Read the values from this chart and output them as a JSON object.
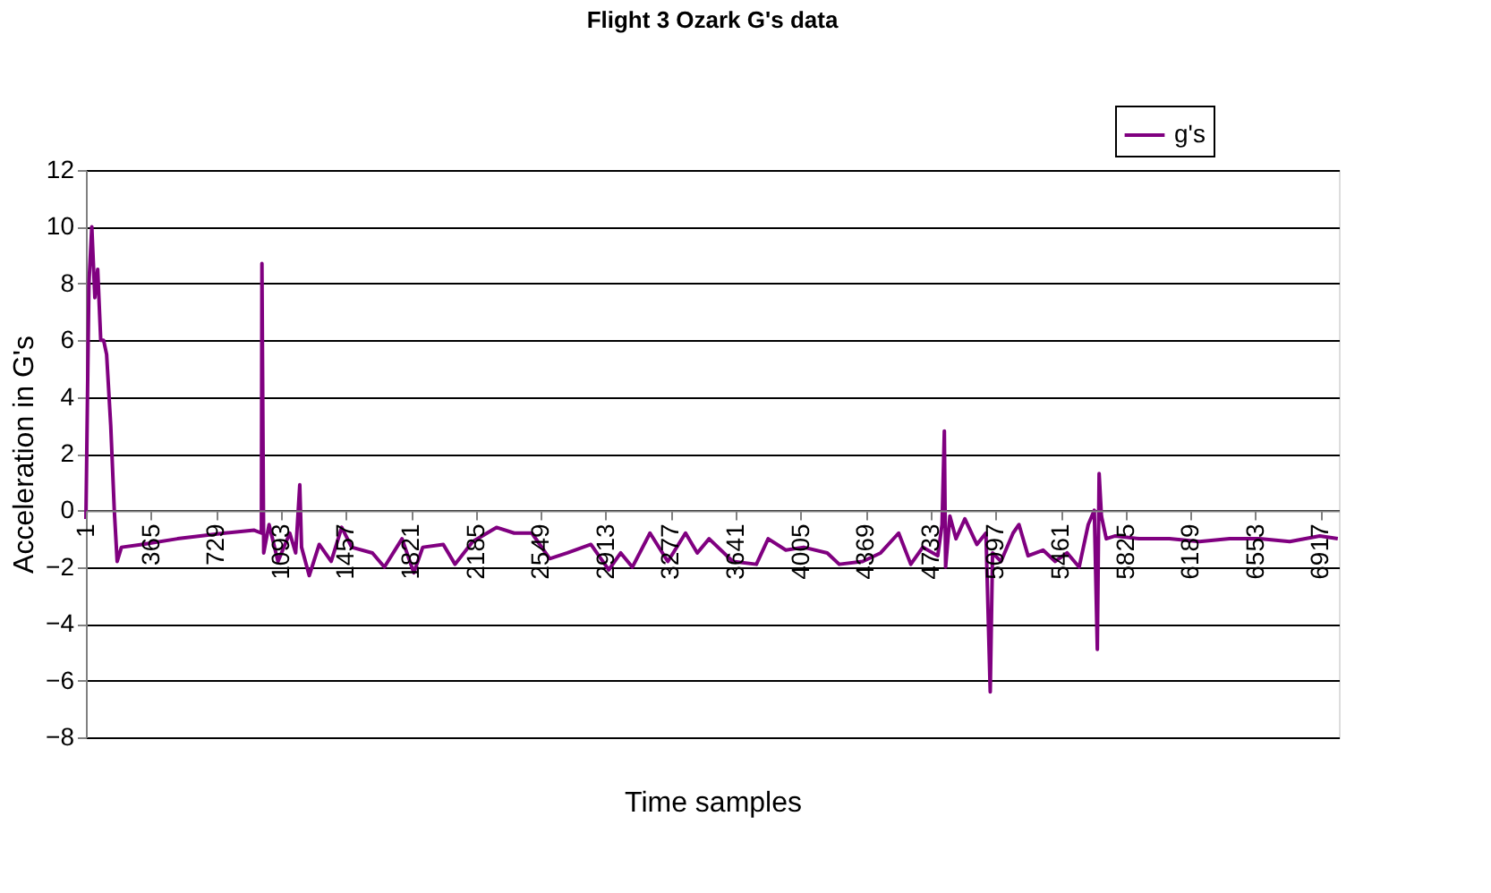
{
  "chart_data": {
    "type": "line",
    "title": "Flight 3 Ozark G's data",
    "xlabel": "Time samples",
    "ylabel": "Acceleration in G's",
    "series": [
      {
        "name": "g's",
        "color": "#800080",
        "x": [
          1,
          18,
          34,
          51,
          67,
          84,
          100,
          117,
          140,
          160,
          176,
          200,
          315,
          514,
          779,
          944,
          984,
          987,
          997,
          1027,
          1077,
          1143,
          1176,
          1199,
          1209,
          1252,
          1308,
          1375,
          1434,
          1490,
          1606,
          1673,
          1772,
          1838,
          1888,
          2003,
          2069,
          2168,
          2301,
          2400,
          2499,
          2599,
          2698,
          2830,
          2930,
          2997,
          3062,
          3161,
          3261,
          3360,
          3426,
          3492,
          3625,
          3757,
          3823,
          3922,
          4022,
          4154,
          4221,
          4352,
          4453,
          4554,
          4622,
          4689,
          4773,
          4797,
          4810,
          4817,
          4841,
          4875,
          4925,
          4992,
          5043,
          5067,
          5080,
          5127,
          5195,
          5228,
          5279,
          5363,
          5431,
          5498,
          5565,
          5616,
          5650,
          5667,
          5677,
          5690,
          5717,
          5768,
          5902,
          6071,
          6239,
          6408,
          6576,
          6745,
          6913,
          7014
        ],
        "values": [
          -0.3,
          8,
          10,
          7.5,
          8.5,
          6,
          6,
          5.5,
          3,
          0,
          -1.8,
          -1.3,
          -1.2,
          -1.0,
          -0.8,
          -0.7,
          -0.8,
          8.7,
          -1.5,
          -0.5,
          -1.8,
          -0.8,
          -1.5,
          0.9,
          -1.3,
          -2.3,
          -1.2,
          -1.8,
          -0.6,
          -1.3,
          -1.5,
          -2,
          -1,
          -2.2,
          -1.3,
          -1.2,
          -1.9,
          -1.1,
          -0.6,
          -0.8,
          -0.8,
          -1.7,
          -1.5,
          -1.2,
          -2.1,
          -1.5,
          -2.0,
          -0.8,
          -1.8,
          -0.8,
          -1.5,
          -1.0,
          -1.8,
          -1.9,
          -1.0,
          -1.4,
          -1.3,
          -1.5,
          -1.9,
          -1.8,
          -1.5,
          -0.8,
          -1.9,
          -1.3,
          -1.6,
          -0.5,
          2.8,
          -2,
          -0.2,
          -1.0,
          -0.3,
          -1.2,
          -0.8,
          -6.4,
          -1.5,
          -1.8,
          -0.8,
          -0.5,
          -1.6,
          -1.4,
          -1.8,
          -1.5,
          -2.0,
          -0.5,
          0,
          -4.9,
          1.3,
          -0.2,
          -1.0,
          -0.9,
          -1.0,
          -1.0,
          -1.1,
          -1.0,
          -1.0,
          -1.1,
          -0.9,
          -1.0
        ]
      }
    ],
    "xlim": [
      1,
      7020
    ],
    "xticks": [
      1,
      365,
      729,
      1093,
      1457,
      1821,
      2185,
      2549,
      2913,
      3277,
      3641,
      4005,
      4369,
      4733,
      5097,
      5461,
      5825,
      6189,
      6553,
      6917
    ],
    "ylim": [
      -8,
      12
    ],
    "yticks": [
      -8,
      -6,
      -4,
      -2,
      0,
      2,
      4,
      6,
      8,
      10,
      12
    ],
    "grid": "y",
    "legend": "top right",
    "marker": "none",
    "line_style": "solid"
  }
}
